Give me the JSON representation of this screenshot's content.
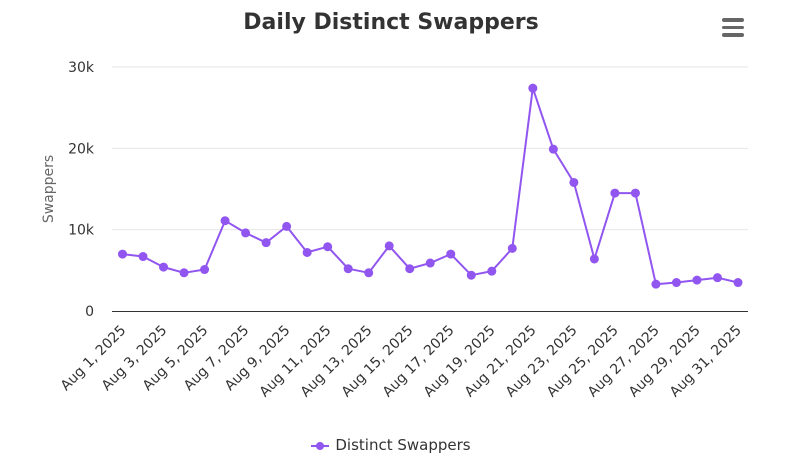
{
  "chart_data": {
    "type": "line",
    "title": "Daily Distinct Swappers",
    "xlabel": "",
    "ylabel": "Swappers",
    "ylim": [
      0,
      30000
    ],
    "y_ticks": [
      "0",
      "10k",
      "20k",
      "30k"
    ],
    "y_tick_values": [
      0,
      10000,
      20000,
      30000
    ],
    "x_tick_labels": [
      "Aug 1, 2025",
      "Aug 3, 2025",
      "Aug 5, 2025",
      "Aug 7, 2025",
      "Aug 9, 2025",
      "Aug 11, 2025",
      "Aug 13, 2025",
      "Aug 15, 2025",
      "Aug 17, 2025",
      "Aug 19, 2025",
      "Aug 21, 2025",
      "Aug 23, 2025",
      "Aug 25, 2025",
      "Aug 27, 2025",
      "Aug 29, 2025",
      "Aug 31, 2025"
    ],
    "x": [
      "Aug 1, 2025",
      "Aug 2, 2025",
      "Aug 3, 2025",
      "Aug 4, 2025",
      "Aug 5, 2025",
      "Aug 6, 2025",
      "Aug 7, 2025",
      "Aug 8, 2025",
      "Aug 9, 2025",
      "Aug 10, 2025",
      "Aug 11, 2025",
      "Aug 12, 2025",
      "Aug 13, 2025",
      "Aug 14, 2025",
      "Aug 15, 2025",
      "Aug 16, 2025",
      "Aug 17, 2025",
      "Aug 18, 2025",
      "Aug 19, 2025",
      "Aug 20, 2025",
      "Aug 21, 2025",
      "Aug 22, 2025",
      "Aug 23, 2025",
      "Aug 24, 2025",
      "Aug 25, 2025",
      "Aug 26, 2025",
      "Aug 27, 2025",
      "Aug 28, 2025",
      "Aug 29, 2025",
      "Aug 30, 2025",
      "Aug 31, 2025"
    ],
    "series": [
      {
        "name": "Distinct Swappers",
        "color": "#9155f0",
        "values": [
          7000,
          6700,
          5400,
          4700,
          5100,
          11100,
          9600,
          8400,
          10400,
          7200,
          7900,
          5200,
          4700,
          8000,
          5200,
          5900,
          7000,
          4400,
          4900,
          7700,
          27400,
          19900,
          15800,
          6400,
          14500,
          14500,
          3300,
          3500,
          3800,
          4100,
          3500
        ]
      }
    ],
    "grid": true,
    "legend_position": "bottom"
  },
  "toolbar": {
    "menu_icon": "hamburger-menu-icon"
  }
}
